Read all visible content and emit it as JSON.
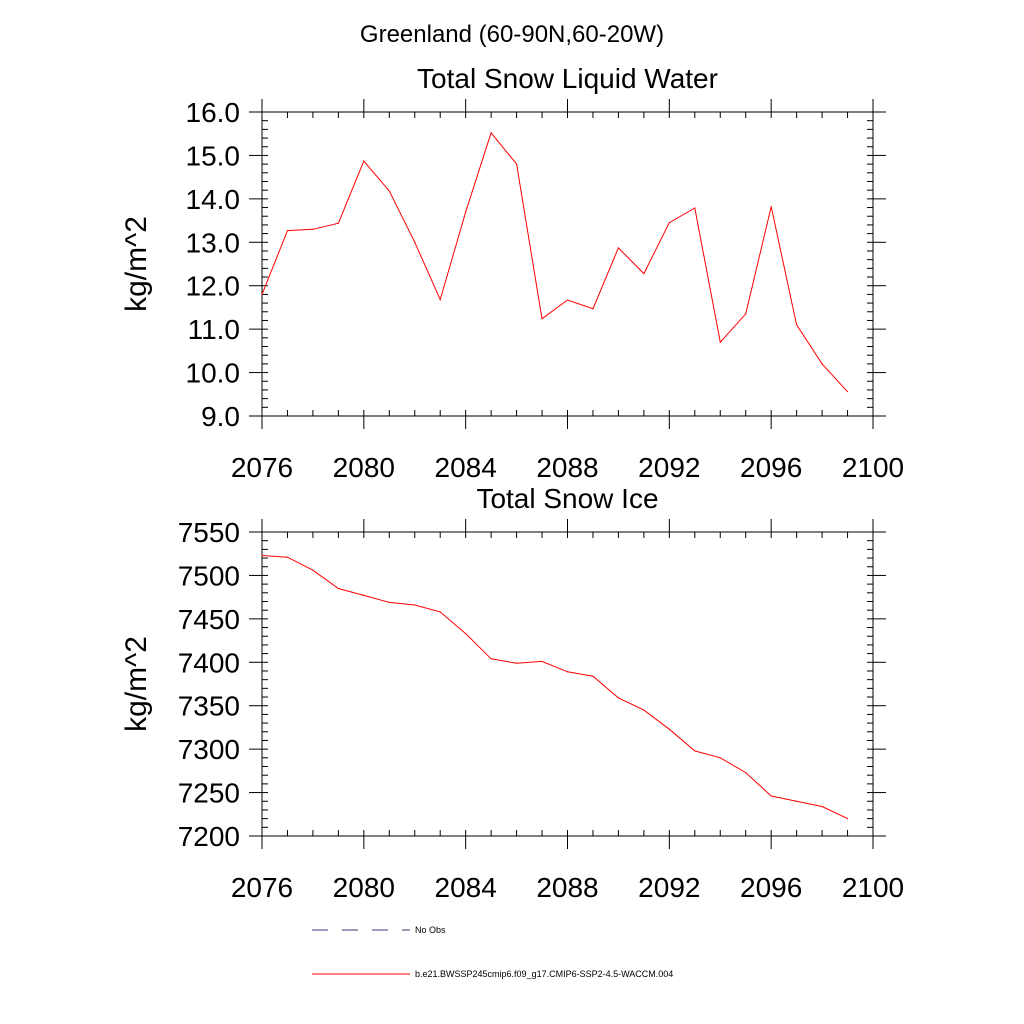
{
  "page_title": "Greenland (60-90N,60-20W)",
  "colors": {
    "series": "#ff0000",
    "noobs": "#3a3a7a",
    "axis": "#000000"
  },
  "legend": {
    "noobs_label": "No Obs",
    "series_label": "b.e21.BWSSP245cmip6.f09_g17.CMIP6-SSP2-4.5-WACCM.004"
  },
  "chart_data": [
    {
      "type": "line",
      "title": "Total Snow Liquid Water",
      "xlabel": "",
      "ylabel": "kg/m^2",
      "xlim": [
        2076,
        2100
      ],
      "ylim": [
        9.0,
        16.0
      ],
      "xticks": [
        2076,
        2080,
        2084,
        2088,
        2092,
        2096,
        2100
      ],
      "xtick_labels": [
        "2076",
        "2080",
        "2084",
        "2088",
        "2092",
        "2096",
        "2100"
      ],
      "yticks": [
        9.0,
        10.0,
        11.0,
        12.0,
        13.0,
        14.0,
        15.0,
        16.0
      ],
      "ytick_labels": [
        "9.0",
        "10.0",
        "11.0",
        "12.0",
        "13.0",
        "14.0",
        "15.0",
        "16.0"
      ],
      "grid": false,
      "series": [
        {
          "name": "b.e21.BWSSP245cmip6.f09_g17.CMIP6-SSP2-4.5-WACCM.004",
          "color": "#ff0000",
          "x": [
            2076,
            2077,
            2078,
            2079,
            2080,
            2081,
            2082,
            2083,
            2084,
            2085,
            2086,
            2087,
            2088,
            2089,
            2090,
            2091,
            2092,
            2093,
            2094,
            2095,
            2096,
            2097,
            2098,
            2099
          ],
          "values": [
            11.8,
            13.27,
            13.3,
            13.44,
            14.87,
            14.18,
            13.0,
            11.68,
            13.7,
            15.52,
            14.8,
            11.24,
            11.67,
            11.47,
            12.87,
            12.28,
            13.45,
            13.79,
            10.7,
            11.35,
            13.82,
            11.1,
            10.2,
            9.56
          ]
        }
      ]
    },
    {
      "type": "line",
      "title": "Total Snow Ice",
      "xlabel": "",
      "ylabel": "kg/m^2",
      "xlim": [
        2076,
        2100
      ],
      "ylim": [
        7200,
        7550
      ],
      "xticks": [
        2076,
        2080,
        2084,
        2088,
        2092,
        2096,
        2100
      ],
      "xtick_labels": [
        "2076",
        "2080",
        "2084",
        "2088",
        "2092",
        "2096",
        "2100"
      ],
      "yticks": [
        7200,
        7250,
        7300,
        7350,
        7400,
        7450,
        7500,
        7550
      ],
      "ytick_labels": [
        "7200",
        "7250",
        "7300",
        "7350",
        "7400",
        "7450",
        "7500",
        "7550"
      ],
      "grid": false,
      "series": [
        {
          "name": "b.e21.BWSSP245cmip6.f09_g17.CMIP6-SSP2-4.5-WACCM.004",
          "color": "#ff0000",
          "x": [
            2076,
            2077,
            2078,
            2079,
            2080,
            2081,
            2082,
            2083,
            2084,
            2085,
            2086,
            2087,
            2088,
            2089,
            2090,
            2091,
            2092,
            2093,
            2094,
            2095,
            2096,
            2097,
            2098,
            2099
          ],
          "values": [
            7523,
            7521,
            7506,
            7485,
            7477,
            7469,
            7466,
            7458,
            7433,
            7404,
            7399,
            7401,
            7389,
            7384,
            7359,
            7345,
            7323,
            7298,
            7290,
            7273,
            7246,
            7240,
            7234,
            7220
          ]
        }
      ]
    }
  ]
}
